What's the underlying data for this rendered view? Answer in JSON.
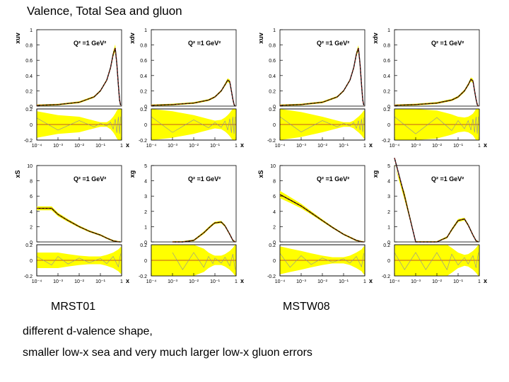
{
  "slide": {
    "title": "Valence, Total Sea and gluon",
    "label_left": "MRST01",
    "label_right": "MSTW08",
    "note1": "different d-valence shape,",
    "note2": "smaller low-x sea and very much larger low-x gluon errors"
  },
  "colors": {
    "band": "#ffff00",
    "central": "#000000",
    "fit": "#b02020",
    "frame": "#000000",
    "alt_curve": "#8a8aa0"
  },
  "chart_data": [
    {
      "type": "line",
      "set": "MRST01",
      "ylabel": "xuv",
      "annotation": "Q² =1 GeV²",
      "ylim": [
        0,
        1
      ],
      "yticks": [
        "0",
        "0.2",
        "0.4",
        "0.6",
        "0.8",
        "1"
      ],
      "xlabel": "x",
      "xticks": [
        "10⁻⁴",
        "10⁻³",
        "10⁻²",
        "10⁻¹",
        "1"
      ],
      "x": [
        0.0001,
        0.001,
        0.01,
        0.05,
        0.1,
        0.2,
        0.3,
        0.4,
        0.5,
        0.6,
        0.7,
        0.8,
        0.9
      ],
      "y": [
        0.01,
        0.02,
        0.05,
        0.12,
        0.2,
        0.34,
        0.5,
        0.68,
        0.76,
        0.55,
        0.28,
        0.08,
        0.01
      ],
      "ratio_ylim": [
        -0.2,
        0.2
      ],
      "ratio_yticks": [
        "-0.2",
        "0",
        "0.2"
      ],
      "ratio_band": [
        0.17,
        0.12,
        0.1,
        0.05,
        0.03,
        0.03,
        0.06,
        0.1,
        0.14,
        0.18,
        0.2,
        0.2,
        0.2
      ]
    },
    {
      "type": "line",
      "set": "MRST01",
      "ylabel": "xdv",
      "annotation": "Q² =1 GeV²",
      "ylim": [
        0,
        1
      ],
      "yticks": [
        "0",
        "0.2",
        "0.4",
        "0.6",
        "0.8",
        "1"
      ],
      "xlabel": "x",
      "xticks": [
        "10⁻⁴",
        "10⁻³",
        "10⁻²",
        "10⁻¹",
        "1"
      ],
      "x": [
        0.0001,
        0.001,
        0.01,
        0.05,
        0.1,
        0.2,
        0.3,
        0.4,
        0.5,
        0.6,
        0.7,
        0.8,
        0.9
      ],
      "y": [
        0.01,
        0.02,
        0.04,
        0.08,
        0.12,
        0.2,
        0.28,
        0.34,
        0.32,
        0.2,
        0.09,
        0.02,
        0.0
      ],
      "ratio_ylim": [
        -0.2,
        0.2
      ],
      "ratio_yticks": [
        "-0.2",
        "0",
        "0.2"
      ],
      "ratio_band": [
        0.2,
        0.17,
        0.12,
        0.07,
        0.05,
        0.06,
        0.09,
        0.12,
        0.15,
        0.18,
        0.2,
        0.2,
        0.2
      ]
    },
    {
      "type": "line",
      "set": "MSTW08",
      "ylabel": "xuv",
      "annotation": "Q² =1 GeV²",
      "ylim": [
        0,
        1
      ],
      "yticks": [
        "0",
        "0.2",
        "0.4",
        "0.6",
        "0.8",
        "1"
      ],
      "xlabel": "x",
      "xticks": [
        "10⁻⁴",
        "10⁻³",
        "10⁻²",
        "10⁻¹",
        "1"
      ],
      "x": [
        0.0001,
        0.001,
        0.01,
        0.05,
        0.1,
        0.2,
        0.3,
        0.4,
        0.5,
        0.6,
        0.7,
        0.8,
        0.9
      ],
      "y": [
        0.01,
        0.02,
        0.05,
        0.12,
        0.2,
        0.34,
        0.5,
        0.68,
        0.76,
        0.55,
        0.28,
        0.08,
        0.01
      ],
      "ratio_ylim": [
        -0.2,
        0.2
      ],
      "ratio_yticks": [
        "-0.2",
        "0",
        "0.2"
      ],
      "ratio_band": [
        0.2,
        0.16,
        0.1,
        0.05,
        0.03,
        0.03,
        0.05,
        0.08,
        0.1,
        0.12,
        0.14,
        0.16,
        0.18
      ]
    },
    {
      "type": "line",
      "set": "MSTW08",
      "ylabel": "xdv",
      "annotation": "Q² =1 GeV²",
      "ylim": [
        0,
        1
      ],
      "yticks": [
        "0",
        "0.2",
        "0.4",
        "0.6",
        "0.8",
        "1"
      ],
      "xlabel": "x",
      "xticks": [
        "10⁻⁴",
        "10⁻³",
        "10⁻²",
        "10⁻¹",
        "1"
      ],
      "x": [
        0.0001,
        0.001,
        0.01,
        0.05,
        0.1,
        0.2,
        0.3,
        0.4,
        0.5,
        0.6,
        0.7,
        0.8,
        0.9
      ],
      "y": [
        0.01,
        0.02,
        0.04,
        0.08,
        0.12,
        0.2,
        0.28,
        0.35,
        0.33,
        0.2,
        0.09,
        0.02,
        0.0
      ],
      "ratio_ylim": [
        -0.2,
        0.2
      ],
      "ratio_yticks": [
        "-0.2",
        "0",
        "0.2"
      ],
      "ratio_band": [
        0.2,
        0.2,
        0.18,
        0.13,
        0.1,
        0.09,
        0.1,
        0.12,
        0.14,
        0.17,
        0.2,
        0.2,
        0.2
      ]
    },
    {
      "type": "line",
      "set": "MRST01",
      "ylabel": "xS",
      "annotation": "Q² =1 GeV²",
      "ylim": [
        0,
        10
      ],
      "yticks": [
        "0",
        "2",
        "4",
        "6",
        "8",
        "10"
      ],
      "xlabel": "x",
      "xticks": [
        "10⁻⁴",
        "10⁻³",
        "10⁻²",
        "10⁻¹",
        "1"
      ],
      "x": [
        0.0001,
        0.0005,
        0.001,
        0.003,
        0.01,
        0.03,
        0.1,
        0.2,
        0.4,
        0.7,
        0.9
      ],
      "y": [
        4.4,
        4.4,
        3.6,
        2.8,
        2.0,
        1.4,
        0.9,
        0.5,
        0.15,
        0.02,
        0.0
      ],
      "ratio_ylim": [
        -0.2,
        0.2
      ],
      "ratio_yticks": [
        "-0.2",
        "0",
        "0.2"
      ],
      "ratio_band": [
        0.1,
        0.1,
        0.1,
        0.08,
        0.06,
        0.05,
        0.05,
        0.07,
        0.1,
        0.14,
        0.17
      ]
    },
    {
      "type": "line",
      "set": "MRST01",
      "ylabel": "xg",
      "annotation": "Q² =1 GeV²",
      "ylim": [
        0,
        5
      ],
      "yticks": [
        "0",
        "1",
        "2",
        "3",
        "4",
        "5"
      ],
      "xlabel": "x",
      "xticks": [
        "10⁻⁴",
        "10⁻³",
        "10⁻²",
        "10⁻¹",
        "1"
      ],
      "x": [
        0.001,
        0.003,
        0.01,
        0.03,
        0.05,
        0.08,
        0.1,
        0.2,
        0.3,
        0.5,
        0.7,
        0.9
      ],
      "y": [
        0.0,
        0.0,
        0.1,
        0.6,
        0.9,
        1.15,
        1.25,
        1.3,
        1.05,
        0.5,
        0.1,
        0.0
      ],
      "ratio_ylim": [
        -0.2,
        0.2
      ],
      "ratio_yticks": [
        "-0.2",
        "0",
        "0.2"
      ],
      "ratio_band": [
        0.2,
        0.2,
        0.2,
        0.15,
        0.1,
        0.07,
        0.06,
        0.06,
        0.08,
        0.12,
        0.16,
        0.2
      ]
    },
    {
      "type": "line",
      "set": "MSTW08",
      "ylabel": "xS",
      "annotation": "Q² =1 GeV²",
      "ylim": [
        0,
        10
      ],
      "yticks": [
        "0",
        "2",
        "4",
        "6",
        "8",
        "10"
      ],
      "xlabel": "x",
      "xticks": [
        "10⁻⁴",
        "10⁻³",
        "10⁻²",
        "10⁻¹",
        "1"
      ],
      "x": [
        0.0001,
        0.0003,
        0.001,
        0.003,
        0.01,
        0.03,
        0.1,
        0.2,
        0.4,
        0.7,
        0.9
      ],
      "y": [
        6.2,
        5.5,
        4.7,
        3.8,
        2.8,
        1.9,
        1.0,
        0.6,
        0.2,
        0.03,
        0.0
      ],
      "ratio_ylim": [
        -0.2,
        0.2
      ],
      "ratio_yticks": [
        "-0.2",
        "0",
        "0.2"
      ],
      "ratio_band": [
        0.18,
        0.15,
        0.12,
        0.09,
        0.06,
        0.04,
        0.04,
        0.06,
        0.1,
        0.14,
        0.18
      ]
    },
    {
      "type": "line",
      "set": "MSTW08",
      "ylabel": "xg",
      "annotation": "Q² =1 GeV²",
      "ylim": [
        0,
        5
      ],
      "yticks": [
        "0",
        "1",
        "2",
        "3",
        "4",
        "5"
      ],
      "xlabel": "x",
      "xticks": [
        "10⁻⁴",
        "10⁻³",
        "10⁻²",
        "10⁻¹",
        "1"
      ],
      "x": [
        0.0001,
        0.0003,
        0.001,
        0.003,
        0.01,
        0.03,
        0.05,
        0.1,
        0.2,
        0.3,
        0.5,
        0.7,
        0.9
      ],
      "y": [
        5.5,
        3.0,
        0.0,
        0.0,
        0.0,
        0.3,
        0.8,
        1.4,
        1.5,
        1.1,
        0.45,
        0.08,
        0.0
      ],
      "ratio_ylim": [
        -0.2,
        0.2
      ],
      "ratio_yticks": [
        "-0.2",
        "0",
        "0.2"
      ],
      "ratio_band": [
        0.2,
        0.2,
        0.2,
        0.2,
        0.2,
        0.2,
        0.16,
        0.1,
        0.07,
        0.08,
        0.12,
        0.16,
        0.2
      ]
    }
  ]
}
